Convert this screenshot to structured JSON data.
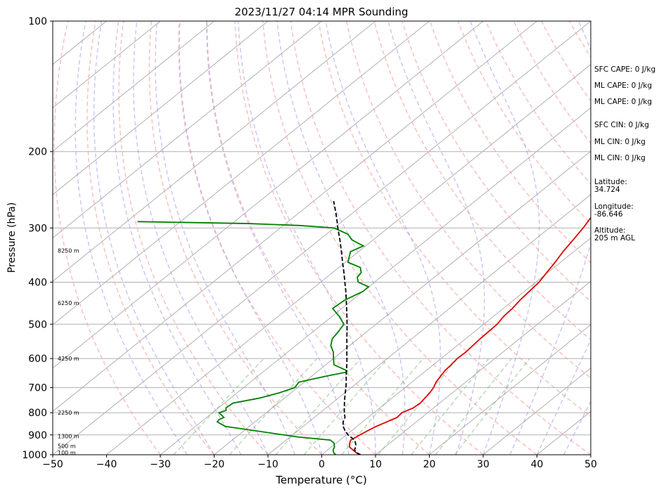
{
  "chart_data": {
    "type": "line",
    "title": "2023/11/27 04:14 MPR Sounding",
    "xlabel": "Temperature (°C)",
    "ylabel": "Pressure (hPa)",
    "xlim": [
      -50,
      50
    ],
    "ylim": [
      1000,
      100
    ],
    "y_scale": "log",
    "x_ticks": [
      "−50",
      "−40",
      "−30",
      "−20",
      "−10",
      "0",
      "10",
      "20",
      "30",
      "40",
      "50"
    ],
    "y_ticks": [
      "1000",
      "900",
      "800",
      "700",
      "600",
      "500",
      "400",
      "300",
      "200",
      "100"
    ],
    "height_labels": [
      "100 m",
      "500 m",
      "1300 m",
      "2250 m",
      "4250 m",
      "6250 m",
      "8250 m"
    ],
    "series": [
      {
        "role": "temperature",
        "color": "#e00000",
        "pressure": [
          1000,
          990,
          975,
          960,
          940,
          925,
          910,
          880,
          860,
          840,
          820,
          800,
          780,
          760,
          740,
          720,
          700,
          680,
          660,
          640,
          620,
          600,
          580,
          560,
          540,
          520,
          500,
          480,
          460,
          440,
          420,
          400,
          380,
          360,
          340,
          320,
          300,
          290,
          280,
          270,
          260
        ],
        "values": [
          7.2,
          6.0,
          4.7,
          3.4,
          2.5,
          2.0,
          2.3,
          3.0,
          3.6,
          4.5,
          5.4,
          5.2,
          6.2,
          6.4,
          6.1,
          5.8,
          5.3,
          4.5,
          4.0,
          3.5,
          3.3,
          3.0,
          3.1,
          2.9,
          2.7,
          2.6,
          2.5,
          1.9,
          1.7,
          1.2,
          0.9,
          0.6,
          -0.2,
          -1.0,
          -2.0,
          -2.8,
          -3.7,
          -4.3,
          -4.9,
          -5.9,
          -7.1
        ]
      },
      {
        "role": "dewpoint",
        "color": "#008000",
        "pressure": [
          1000,
          990,
          975,
          960,
          940,
          925,
          910,
          880,
          860,
          840,
          830,
          820,
          800,
          790,
          780,
          760,
          740,
          720,
          700,
          680,
          660,
          645,
          640,
          620,
          600,
          580,
          560,
          540,
          520,
          500,
          480,
          460,
          440,
          420,
          410,
          400,
          390,
          380,
          370,
          360,
          350,
          340,
          330,
          320,
          310,
          300,
          296,
          293,
          290
        ],
        "values": [
          2.6,
          1.8,
          1.0,
          0.6,
          -0.4,
          -1.8,
          -8.5,
          -18.0,
          -24.5,
          -27.0,
          -27.2,
          -26.8,
          -28.8,
          -28.0,
          -28.6,
          -28.4,
          -24.6,
          -22.2,
          -20.5,
          -21.0,
          -17.5,
          -14.5,
          -14.7,
          -18.5,
          -20.0,
          -21.5,
          -23.5,
          -24.8,
          -25.3,
          -26.0,
          -28.6,
          -31.7,
          -31.4,
          -30.0,
          -30.0,
          -33.0,
          -34.3,
          -34.7,
          -36.0,
          -39.5,
          -40.5,
          -41.5,
          -40.4,
          -43.8,
          -46.0,
          -50.0,
          -57.0,
          -67.0,
          -88.0
        ]
      },
      {
        "role": "parcel",
        "color": "#000000",
        "pressure": [
          1000,
          990,
          975,
          960,
          950,
          940,
          925,
          910,
          900,
          880,
          860,
          840,
          820,
          800,
          780,
          760,
          740,
          720,
          700,
          680,
          660,
          640,
          620,
          600,
          580,
          560,
          540,
          520,
          500,
          480,
          460,
          440,
          420,
          400,
          380,
          360,
          340,
          320,
          300,
          290,
          280,
          270,
          260
        ],
        "values": [
          7.2,
          6.1,
          5.0,
          4.5,
          4.1,
          3.6,
          2.7,
          1.3,
          0.3,
          -1.2,
          -2.6,
          -3.6,
          -4.3,
          -5.5,
          -6.6,
          -7.7,
          -8.8,
          -9.9,
          -11.0,
          -12.2,
          -13.5,
          -14.8,
          -16.1,
          -17.5,
          -19.0,
          -20.5,
          -22.1,
          -23.7,
          -25.4,
          -27.2,
          -29.1,
          -31.1,
          -33.2,
          -35.5,
          -37.9,
          -40.5,
          -43.2,
          -46.1,
          -49.3,
          -50.9,
          -52.6,
          -54.4,
          -56.3
        ]
      }
    ]
  },
  "info": {
    "sfc_cape": "SFC CAPE: 0 J/kg",
    "ml_cape_1": "ML CAPE: 0 J/kg",
    "ml_cape_2": "ML CAPE: 0 J/kg",
    "sfc_cin": "SFC CIN: 0 J/kg",
    "ml_cin_1": "ML CIN: 0 J/kg",
    "ml_cin_2": "ML CIN: 0 J/kg",
    "latitude": "Latitude:\n34.724",
    "longitude": "Longitude:\n-86.646",
    "altitude": "Altitude:\n205 m AGL"
  }
}
